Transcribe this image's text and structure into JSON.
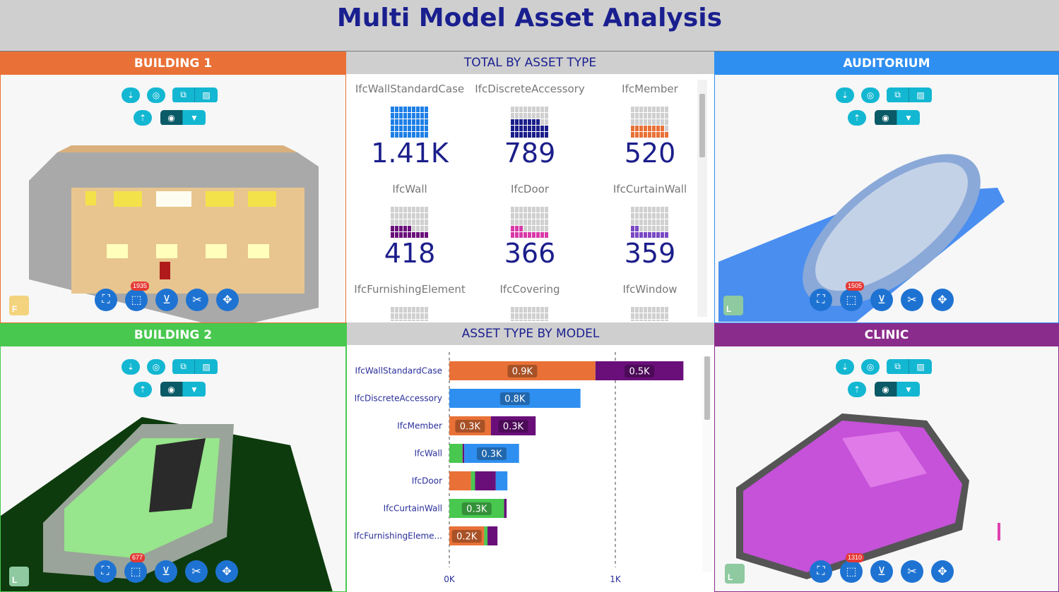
{
  "app": {
    "title": "Multi Model Asset Analysis"
  },
  "colors": {
    "building1": "#e97137",
    "auditorium": "#2f8ff0",
    "building2": "#49c84f",
    "clinic": "#8a2c8c",
    "center_header": "#cfcfcf",
    "accent": "#13b7d2"
  },
  "panels": {
    "building1": {
      "title": "BUILDING 1",
      "badge": "1935",
      "cube_letter": "F"
    },
    "auditorium": {
      "title": "AUDITORIUM",
      "badge": "1505",
      "cube_letter": "L"
    },
    "building2": {
      "title": "BUILDING 2",
      "badge": "677",
      "cube_letter": "L"
    },
    "clinic": {
      "title": "CLINIC",
      "badge": "1310",
      "cube_letter": "L"
    }
  },
  "viewer_icons": {
    "top": [
      "arrow-down-icon",
      "target-icon",
      "layers-icon",
      "hatch-icon"
    ],
    "second": [
      "arrow-up-icon",
      "record-icon",
      "filter-icon"
    ],
    "bottom": [
      "fit-icon",
      "select-icon",
      "clear-filter-icon",
      "cut-icon",
      "pan-icon"
    ]
  },
  "total_by_asset": {
    "title": "TOTAL BY ASSET TYPE",
    "cards": [
      {
        "label": "IfcWallStandardCase",
        "value": "1.41K",
        "color": "#1e7fe6",
        "fill": 1.0
      },
      {
        "label": "IfcDiscreteAccessory",
        "value": "789",
        "color": "#1b1e8a",
        "fill": 0.56
      },
      {
        "label": "IfcMember",
        "value": "520",
        "color": "#e97137",
        "fill": 0.37
      },
      {
        "label": "IfcWall",
        "value": "418",
        "color": "#6a0f7a",
        "fill": 0.3
      },
      {
        "label": "IfcDoor",
        "value": "366",
        "color": "#d83aa8",
        "fill": 0.26
      },
      {
        "label": "IfcCurtainWall",
        "value": "359",
        "color": "#7a4ac4",
        "fill": 0.25
      },
      {
        "label": "IfcFurnishingElement",
        "value": "",
        "color": "#d0d0d0",
        "fill": 0.2
      },
      {
        "label": "IfcCovering",
        "value": "",
        "color": "#d0d0d0",
        "fill": 0.2
      },
      {
        "label": "IfcWindow",
        "value": "",
        "color": "#d0d0d0",
        "fill": 0.2
      }
    ]
  },
  "chart_data": {
    "type": "bar",
    "title": "ASSET TYPE BY MODEL",
    "orientation": "horizontal",
    "stacked": true,
    "categories": [
      "IfcWallStandardCase",
      "IfcDiscreteAccessory",
      "IfcMember",
      "IfcWall",
      "IfcDoor",
      "IfcCurtainWall",
      "IfcFurnishingEleme..."
    ],
    "series": [
      {
        "color": "#e97137",
        "values": [
          880,
          0,
          250,
          0,
          130,
          0,
          210
        ]
      },
      {
        "color": "#49c84f",
        "values": [
          0,
          0,
          0,
          80,
          25,
          330,
          20
        ]
      },
      {
        "color": "#6a0f7a",
        "values": [
          530,
          0,
          270,
          10,
          125,
          15,
          60
        ]
      },
      {
        "color": "#2f8ff0",
        "values": [
          0,
          790,
          0,
          330,
          70,
          0,
          0
        ]
      }
    ],
    "data_labels": [
      [
        "0.9K",
        "0.5K"
      ],
      [
        "0.8K"
      ],
      [
        "0.3K",
        "0.3K"
      ],
      [
        "0.3K"
      ],
      [],
      [
        "0.3K"
      ],
      [
        "0.2K"
      ]
    ],
    "xlim": [
      0,
      1400
    ],
    "xticks": [
      0,
      1000
    ],
    "xtick_labels": [
      "0K",
      "1K"
    ],
    "grid": "dashed vertical at 1K"
  }
}
